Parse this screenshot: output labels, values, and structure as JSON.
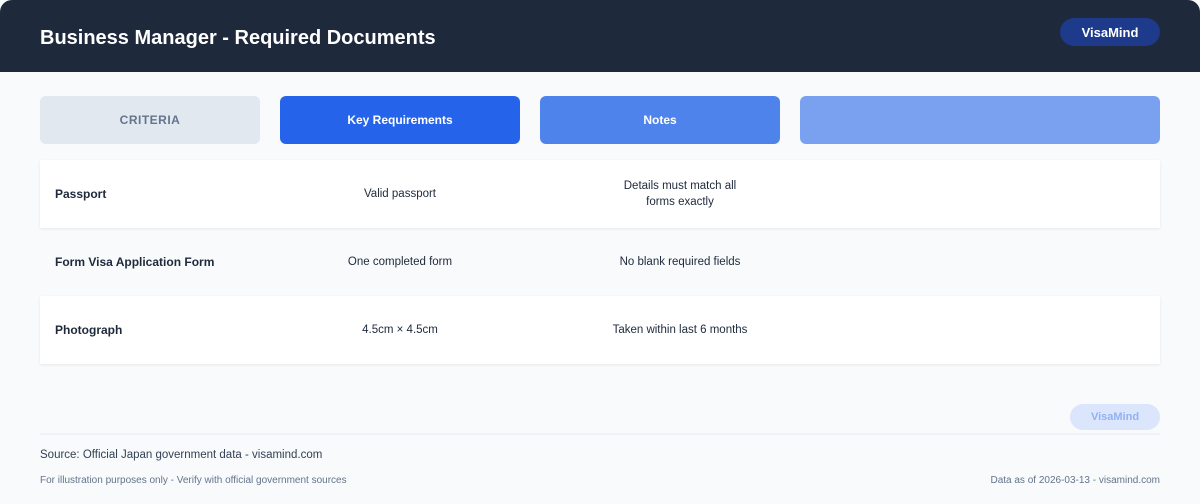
{
  "header": {
    "title": "Business Manager - Required Documents",
    "brand": "VisaMind"
  },
  "tabs": [
    "CRITERIA",
    "Key Requirements",
    "Notes",
    ""
  ],
  "rows": [
    {
      "criteria": "Passport",
      "requirement": "Valid passport",
      "notes": "Details must match all forms exactly"
    },
    {
      "criteria": "Form Visa Application Form",
      "requirement": "One completed form",
      "notes": "No blank required fields"
    },
    {
      "criteria": "Photograph",
      "requirement": "4.5cm × 4.5cm",
      "notes": "Taken within last 6 months"
    }
  ],
  "footer": {
    "watermark": "VisaMind",
    "source": "Source: Official Japan government data - visamind.com",
    "disclaimer": "For illustration purposes only - Verify with official government sources",
    "date": "Data as of 2026-03-13 - visamind.com"
  }
}
